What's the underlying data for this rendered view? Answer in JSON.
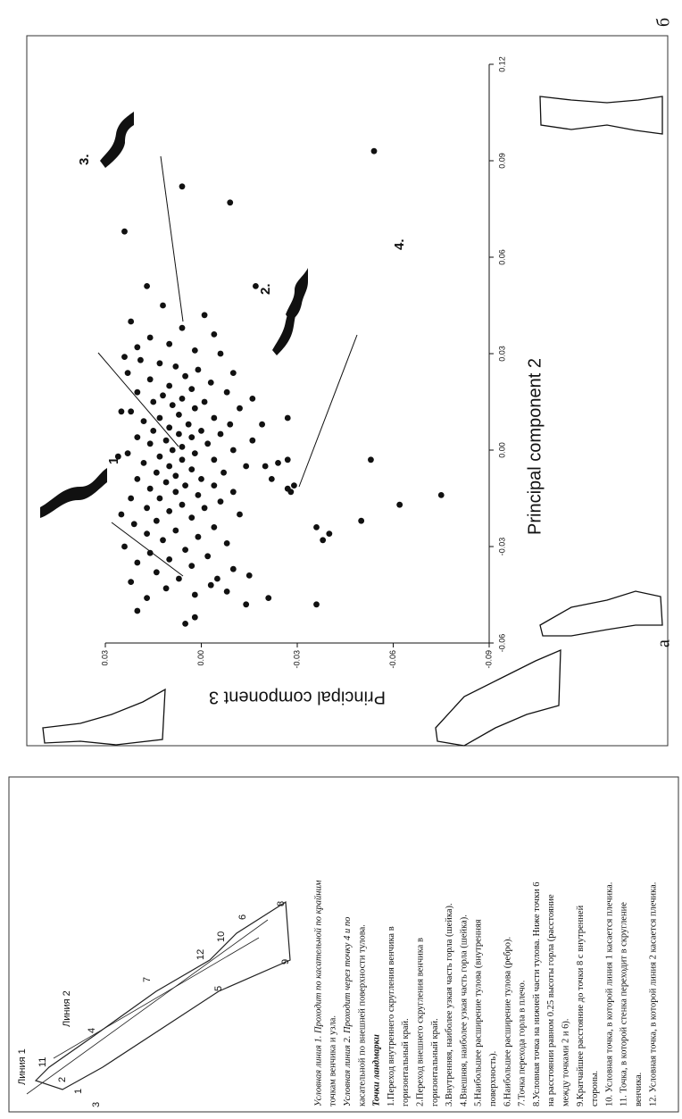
{
  "chart_data": {
    "type": "scatter",
    "xlabel": "Principal component 2",
    "ylabel": "Principal component 3",
    "xlim": [
      -0.06,
      0.12
    ],
    "xticks": [
      -0.06,
      -0.03,
      {
        "value": 0,
        "label": "0.00"
      },
      0.03,
      0.06,
      0.09,
      0.12
    ],
    "ylim": [
      -0.09,
      0.03
    ],
    "yticks": [
      0.03,
      {
        "value": 0,
        "label": "0.00"
      },
      -0.03,
      -0.06,
      -0.09
    ],
    "color": "#111111",
    "annotations": [
      "1.",
      "2.",
      "3.",
      "4."
    ],
    "x": [
      0.093,
      0.082,
      0.077,
      0.068,
      0.051,
      0.051,
      -0.003,
      -0.014,
      -0.017,
      -0.022,
      -0.024,
      -0.026,
      -0.028,
      -0.046,
      -0.048,
      -0.048,
      -0.04,
      -0.05,
      -0.054,
      -0.052,
      -0.005,
      -0.009,
      -0.012,
      -0.013,
      -0.011,
      0.008,
      0.01,
      -0.003,
      -0.004,
      0.045,
      0.04,
      0.038,
      0.035,
      0.033,
      0.031,
      0.03,
      0.028,
      0.027,
      0.026,
      0.025,
      0.024,
      0.023,
      0.022,
      0.021,
      0.02,
      0.019,
      0.018,
      0.018,
      0.017,
      0.016,
      0.015,
      0.015,
      0.014,
      0.013,
      0.013,
      0.012,
      0.011,
      0.01,
      0.01,
      0.009,
      0.008,
      0.008,
      0.007,
      0.006,
      0.006,
      0.005,
      0.005,
      0.004,
      0.004,
      0.003,
      0.002,
      0.002,
      0.001,
      0,
      0,
      -0.001,
      -0.001,
      -0.002,
      -0.003,
      -0.003,
      -0.004,
      -0.005,
      -0.005,
      -0.006,
      -0.007,
      -0.007,
      -0.008,
      -0.009,
      -0.009,
      -0.01,
      -0.011,
      -0.011,
      -0.012,
      -0.013,
      -0.013,
      -0.014,
      -0.015,
      -0.015,
      -0.016,
      -0.017,
      -0.018,
      -0.018,
      -0.019,
      -0.02,
      -0.021,
      -0.022,
      -0.023,
      -0.024,
      -0.025,
      -0.026,
      -0.027,
      -0.028,
      -0.029,
      -0.03,
      -0.031,
      -0.032,
      -0.033,
      -0.034,
      -0.035,
      -0.036,
      -0.037,
      -0.038,
      -0.04,
      -0.041,
      -0.042,
      -0.043,
      -0.045,
      -0.046,
      0.036,
      0.042,
      0.029,
      0.016,
      0.003,
      -0.002,
      -0.02,
      0.012,
      0.024,
      0.032,
      -0.044,
      -0.039
    ],
    "values": [
      -0.054,
      0.006,
      -0.009,
      0.024,
      -0.017,
      0.017,
      -0.053,
      -0.075,
      -0.062,
      -0.05,
      -0.036,
      -0.04,
      -0.038,
      -0.021,
      -0.014,
      -0.036,
      -0.005,
      0.02,
      0.005,
      0.002,
      -0.02,
      -0.022,
      -0.027,
      -0.028,
      -0.029,
      -0.019,
      -0.027,
      -0.027,
      -0.024,
      0.012,
      0.022,
      0.006,
      0.016,
      0.01,
      0.002,
      -0.006,
      0.019,
      0.013,
      0.008,
      0.001,
      -0.01,
      0.005,
      0.016,
      -0.003,
      0.01,
      0.003,
      -0.008,
      0.02,
      0.012,
      0.006,
      -0.001,
      0.015,
      0.009,
      -0.012,
      0.002,
      0.022,
      0.007,
      -0.004,
      0.013,
      0.018,
      0.004,
      -0.009,
      0.01,
      0,
      0.015,
      -0.006,
      0.007,
      0.02,
      0.003,
      0.011,
      -0.002,
      0.016,
      0.006,
      -0.01,
      0.009,
      0.002,
      0.023,
      0.013,
      -0.004,
      0.006,
      0.018,
      0.01,
      -0.014,
      0.003,
      0.014,
      -0.007,
      0.008,
      0,
      0.02,
      0.011,
      -0.004,
      0.005,
      0.016,
      -0.01,
      0.008,
      0.001,
      0.013,
      0.022,
      -0.006,
      0.006,
      0.017,
      -0.001,
      0.01,
      -0.012,
      0.003,
      0.014,
      0.021,
      -0.004,
      0.008,
      0.017,
      0.001,
      0.012,
      -0.008,
      0.024,
      0.005,
      0.016,
      -0.002,
      0.01,
      0.02,
      0.003,
      -0.01,
      0.014,
      0.007,
      0.022,
      -0.003,
      0.011,
      0.002,
      0.017,
      -0.004,
      -0.001,
      0.024,
      -0.016,
      -0.016,
      0.026,
      0.025,
      0.025,
      0.023,
      0.02,
      -0.008,
      -0.015
    ]
  },
  "panel_labels": [
    "а",
    "б"
  ],
  "panel_a": {
    "line_labels": [
      "Линия 1",
      "Линия 2"
    ],
    "points": [
      "1",
      "2",
      "3",
      "4",
      "5",
      "6",
      "7",
      "8",
      "9",
      "10",
      "11",
      "12"
    ],
    "text": [
      "Условная линия 1. Проходит по касательной по крайним",
      "точкам венчика и узла.",
      "Условная линия 2. Проходит через точку 4 и по",
      "касательной по внешней поверхности тулова.",
      "Точки ландмарки",
      "1.Переход внутреннего скругления венчика в",
      "горизонтальный край.",
      "2.Переход внешнего скругления венчика в",
      "горизонтальный край.",
      "3.Внутренняя, наиболее узкая часть горла (шейка).",
      "4.Внешняя, наиболее узкая часть горла (шейка).",
      "5.Наибольшее расширение тулова (внутренняя",
      "поверхность).",
      "6.Наибольшее расширение тулова (ребро).",
      "7.Точка перехода горла в плечо.",
      "8.Условная точка на нижней части тулова. Ниже точки 6",
      "на расстоянии равном 0.25 высоты горла (расстояние",
      "между точками 2 и 6).",
      "9.Кратчайшее расстояние до точки 8 с внутренней",
      "стороны.",
      "10. Условная точка, в которой линия 1 касается плечика.",
      "11. Точка, в которой стенка переходит в скругление",
      "венчика.",
      "12. Условная точка, в которой линия 2 касается плечика."
    ]
  }
}
